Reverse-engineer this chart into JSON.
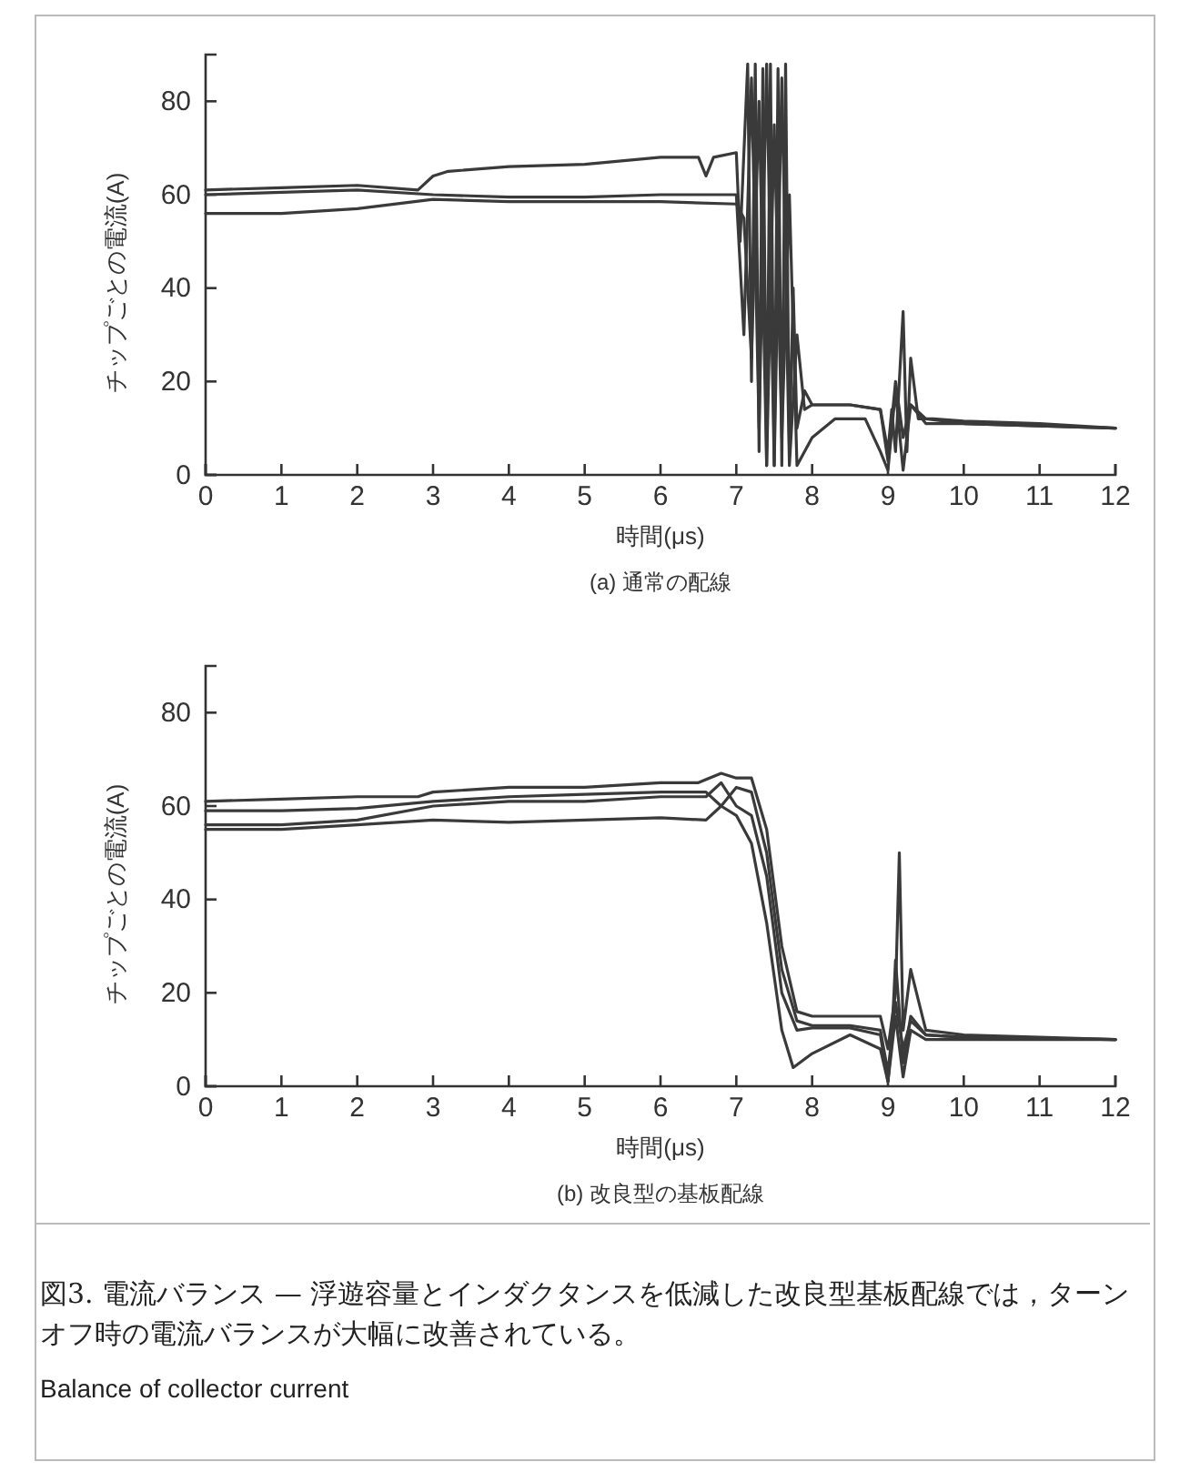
{
  "chart_data": [
    {
      "type": "line",
      "title": "(a) 通常の配線",
      "xlabel": "時間(μs)",
      "ylabel": "チップごとの電流(A)",
      "xlim": [
        0,
        12
      ],
      "ylim": [
        0,
        90
      ],
      "xticks": [
        0,
        1,
        2,
        3,
        4,
        5,
        6,
        7,
        8,
        9,
        10,
        11,
        12
      ],
      "yticks": [
        0,
        20,
        40,
        60,
        80
      ],
      "grid": false,
      "line_style": "solid",
      "series": [
        {
          "color": "#3a3a3a",
          "x": [
            0,
            1,
            2,
            2.8,
            3,
            3.2,
            4,
            5,
            6,
            6.5,
            6.6,
            6.7,
            7,
            7.05,
            7.15,
            7.2,
            7.25,
            7.3,
            7.35,
            7.4,
            7.45,
            7.5,
            7.55,
            7.6,
            7.65,
            7.7,
            7.75,
            7.8,
            7.9,
            8,
            8.5,
            8.9,
            9,
            9.05,
            9.1,
            9.2,
            9.25,
            9.3,
            9.4,
            9.6,
            10,
            11,
            12
          ],
          "values": [
            61,
            61.5,
            62,
            61,
            64,
            65,
            66,
            66.5,
            68,
            68,
            64,
            68,
            69,
            50,
            88,
            20,
            88,
            5,
            87,
            2,
            88,
            2,
            87,
            2,
            88,
            5,
            40,
            10,
            18,
            15,
            15,
            14,
            5,
            14,
            5,
            35,
            5,
            25,
            12,
            12,
            11.5,
            11,
            10
          ]
        },
        {
          "color": "#3a3a3a",
          "x": [
            0,
            1,
            2,
            3,
            4,
            5,
            6,
            7,
            7.1,
            7.2,
            7.3,
            7.4,
            7.5,
            7.6,
            7.7,
            7.8,
            7.9,
            8,
            8.5,
            8.9,
            9,
            9.1,
            9.2,
            9.3,
            9.5,
            10,
            11,
            12
          ],
          "values": [
            60,
            60.5,
            61,
            60,
            59.5,
            59.5,
            60,
            60,
            30,
            85,
            10,
            88,
            2,
            85,
            2,
            30,
            14,
            15,
            15,
            14,
            3,
            20,
            8,
            15,
            12,
            11,
            10.5,
            10
          ]
        },
        {
          "color": "#3a3a3a",
          "x": [
            0,
            1,
            2,
            3,
            4,
            5,
            6,
            7,
            7.1,
            7.2,
            7.3,
            7.4,
            7.5,
            7.6,
            7.7,
            7.8,
            8,
            8.3,
            8.7,
            8.9,
            9,
            9.1,
            9.2,
            9.3,
            9.5,
            10,
            11,
            12
          ],
          "values": [
            56,
            56,
            57,
            59,
            58.5,
            58.5,
            58.5,
            58,
            55,
            25,
            80,
            2,
            75,
            8,
            60,
            2,
            8,
            12,
            12,
            5,
            1,
            18,
            1,
            15,
            11,
            11,
            10.5,
            10
          ]
        }
      ]
    },
    {
      "type": "line",
      "title": "(b) 改良型の基板配線",
      "xlabel": "時間(μs)",
      "ylabel": "チップごとの電流(A)",
      "xlim": [
        0,
        12
      ],
      "ylim": [
        0,
        90
      ],
      "xticks": [
        0,
        1,
        2,
        3,
        4,
        5,
        6,
        7,
        8,
        9,
        10,
        11,
        12
      ],
      "yticks": [
        0,
        20,
        40,
        60,
        80
      ],
      "grid": false,
      "line_style": "solid",
      "annotations": [
        "図3. 電流バランス — 浮遊容量とインダクタンスを低減した改良型基板配線では，ターンオフ時の電流バランスが大幅に改善されている。",
        "Balance of collector current"
      ],
      "series": [
        {
          "color": "#3a3a3a",
          "x": [
            0,
            1,
            2,
            2.8,
            3,
            4,
            5,
            6,
            6.5,
            6.8,
            7,
            7.2,
            7.4,
            7.6,
            7.8,
            8,
            8.5,
            8.9,
            9,
            9.1,
            9.15,
            9.2,
            9.3,
            9.5,
            10,
            11,
            12
          ],
          "values": [
            61,
            61.5,
            62,
            62,
            63,
            64,
            64,
            65,
            65,
            67,
            66,
            66,
            55,
            30,
            16,
            15,
            15,
            15,
            8,
            20,
            50,
            12,
            25,
            12,
            11,
            10.5,
            10
          ]
        },
        {
          "color": "#3a3a3a",
          "x": [
            0,
            1,
            2,
            3,
            4,
            5,
            6,
            6.6,
            6.8,
            7,
            7.2,
            7.4,
            7.6,
            7.8,
            8,
            8.5,
            8.9,
            9,
            9.1,
            9.2,
            9.3,
            9.5,
            10,
            12
          ],
          "values": [
            59,
            59,
            59.5,
            61,
            62,
            62.5,
            63,
            63,
            60,
            64,
            63,
            50,
            25,
            14,
            13,
            13,
            12,
            3,
            18,
            8,
            14,
            11,
            10.5,
            10
          ]
        },
        {
          "color": "#3a3a3a",
          "x": [
            0,
            1,
            2,
            3,
            4,
            5,
            6,
            6.6,
            6.8,
            7,
            7.2,
            7.4,
            7.6,
            7.8,
            8,
            8.5,
            8.9,
            9,
            9.05,
            9.1,
            9.2,
            9.3,
            9.5,
            10,
            12
          ],
          "values": [
            56,
            56,
            57,
            60,
            61,
            61,
            62,
            62,
            65,
            60,
            58,
            45,
            20,
            12,
            12.5,
            12.5,
            11,
            1,
            10,
            27,
            5,
            15,
            11,
            10.5,
            10
          ]
        },
        {
          "color": "#3a3a3a",
          "x": [
            0,
            1,
            2,
            3,
            4,
            5,
            6,
            6.6,
            6.8,
            7,
            7.2,
            7.4,
            7.6,
            7.75,
            8,
            8.5,
            8.9,
            9,
            9.1,
            9.2,
            9.3,
            9.5,
            10,
            12
          ],
          "values": [
            55,
            55,
            56,
            57,
            56.5,
            57,
            57.5,
            57,
            60,
            58,
            52,
            35,
            12,
            4,
            7,
            11,
            8,
            1,
            15,
            2,
            12,
            10,
            10,
            10
          ]
        }
      ]
    }
  ]
}
